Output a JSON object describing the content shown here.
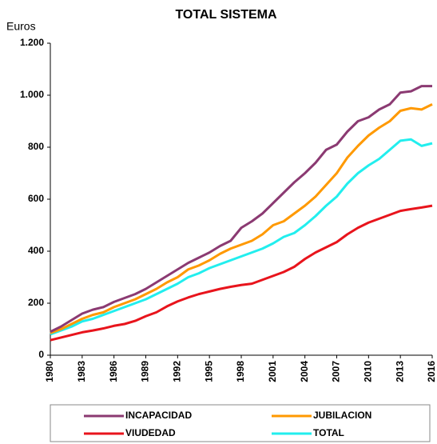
{
  "chart_data": {
    "type": "line",
    "title": "TOTAL SISTEMA",
    "y_label": "Euros",
    "x": [
      1980,
      1981,
      1982,
      1983,
      1984,
      1985,
      1986,
      1987,
      1988,
      1989,
      1990,
      1991,
      1992,
      1993,
      1994,
      1995,
      1996,
      1997,
      1998,
      1999,
      2000,
      2001,
      2002,
      2003,
      2004,
      2005,
      2006,
      2007,
      2008,
      2009,
      2010,
      2011,
      2012,
      2013,
      2014,
      2015,
      2016
    ],
    "xlim": [
      1980,
      2016
    ],
    "xticks": [
      1980,
      1983,
      1986,
      1989,
      1992,
      1995,
      1998,
      2001,
      2004,
      2007,
      2010,
      2013,
      2016
    ],
    "ylim": [
      0,
      1200
    ],
    "yticks": [
      0,
      200,
      400,
      600,
      800,
      {
        "value": 1000,
        "label": "1.000"
      },
      {
        "value": 1200,
        "label": "1.200"
      }
    ],
    "grid": false,
    "series": [
      {
        "name": "INCAPACIDAD",
        "color": "#8b3a72",
        "values": [
          90,
          110,
          135,
          160,
          175,
          185,
          205,
          220,
          235,
          255,
          280,
          305,
          330,
          355,
          375,
          395,
          420,
          440,
          490,
          515,
          545,
          585,
          625,
          665,
          700,
          740,
          790,
          810,
          860,
          900,
          915,
          945,
          965,
          1010,
          1015,
          1035,
          1035
        ]
      },
      {
        "name": "JUBILACION",
        "color": "#ff9900",
        "values": [
          85,
          100,
          120,
          140,
          155,
          165,
          185,
          200,
          215,
          235,
          255,
          280,
          300,
          330,
          345,
          365,
          390,
          410,
          425,
          440,
          465,
          500,
          515,
          545,
          575,
          610,
          655,
          700,
          760,
          805,
          845,
          875,
          900,
          940,
          950,
          945,
          965
        ]
      },
      {
        "name": "VIUDEDAD",
        "color": "#e8141c",
        "values": [
          58,
          68,
          78,
          88,
          95,
          103,
          113,
          120,
          132,
          150,
          165,
          188,
          207,
          222,
          235,
          245,
          255,
          263,
          270,
          275,
          290,
          305,
          320,
          340,
          370,
          395,
          415,
          435,
          465,
          490,
          510,
          525,
          540,
          555,
          562,
          568,
          575
        ]
      },
      {
        "name": "TOTAL",
        "color": "#22eeee",
        "values": [
          80,
          95,
          110,
          130,
          140,
          155,
          170,
          185,
          200,
          215,
          235,
          255,
          275,
          300,
          315,
          335,
          350,
          365,
          380,
          395,
          410,
          430,
          455,
          470,
          500,
          535,
          575,
          610,
          660,
          700,
          730,
          755,
          790,
          825,
          830,
          805,
          815
        ]
      }
    ]
  }
}
